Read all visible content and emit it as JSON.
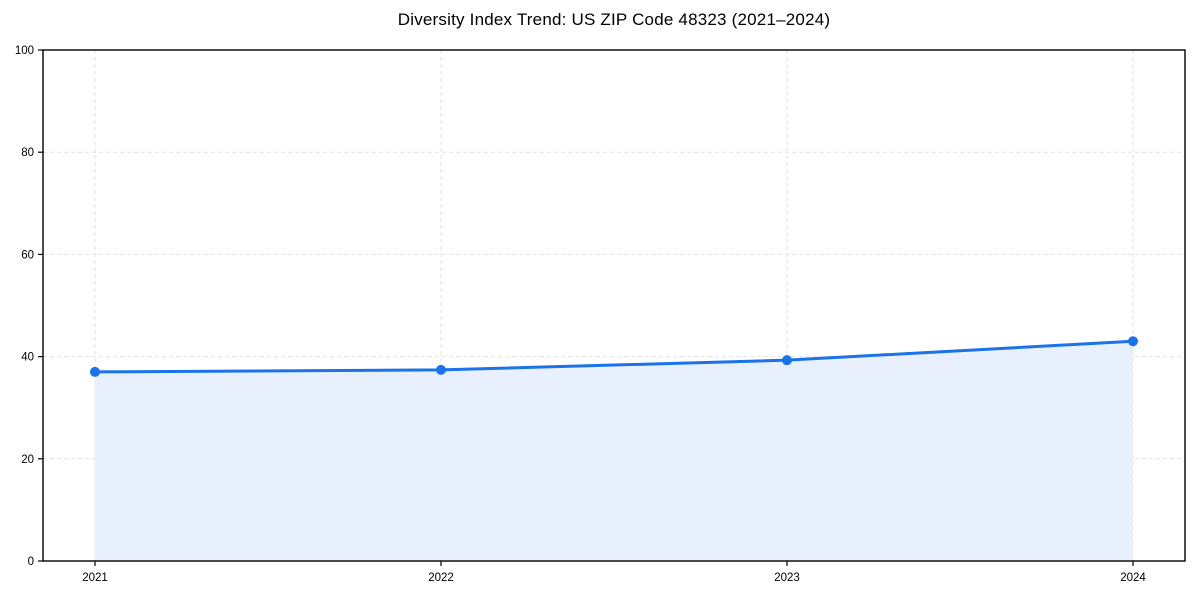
{
  "chart_data": {
    "type": "line",
    "title": "Diversity Index Trend: US ZIP Code 48323 (2021–2024)",
    "categories": [
      "2021",
      "2022",
      "2023",
      "2024"
    ],
    "values": [
      37.0,
      37.4,
      39.3,
      43.0
    ],
    "xlabel": "",
    "ylabel": "",
    "ylim": [
      0,
      100
    ],
    "yticks": [
      0,
      20,
      40,
      60,
      80,
      100
    ],
    "grid": "dashed-both-axes",
    "legend": "none",
    "area_fill": true,
    "marker": "circle",
    "colors": {
      "line": "#1a73e8",
      "area_fill": "#e8f0fd",
      "grid": "#e2e2e2",
      "spine": "#000000",
      "text": "#000000"
    }
  }
}
